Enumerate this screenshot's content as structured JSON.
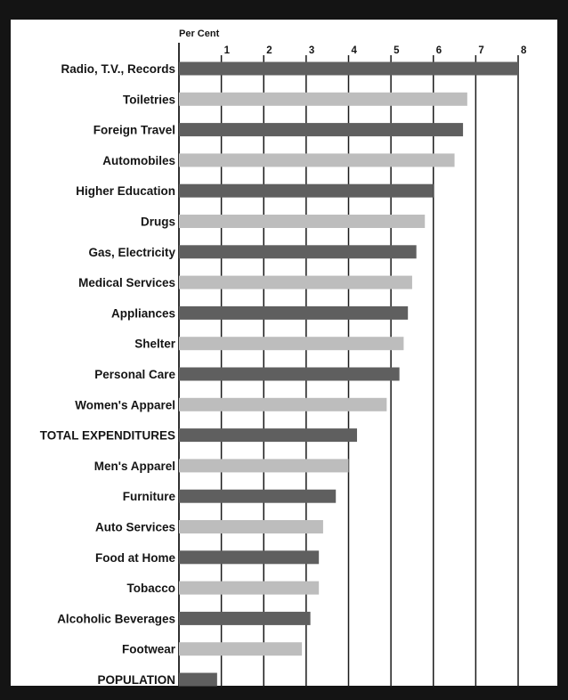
{
  "chart_data": {
    "type": "bar",
    "orientation": "horizontal",
    "unit_label": "Per Cent",
    "x_ticks": [
      1,
      2,
      3,
      4,
      5,
      6,
      7,
      8
    ],
    "xlim": [
      0,
      8
    ],
    "grid": true,
    "categories": [
      "Radio, T.V., Records",
      "Toiletries",
      "Foreign Travel",
      "Automobiles",
      "Higher Education",
      "Drugs",
      "Gas, Electricity",
      "Medical Services",
      "Appliances",
      "Shelter",
      "Personal Care",
      "Women's Apparel",
      "TOTAL EXPENDITURES",
      "Men's Apparel",
      "Furniture",
      "Auto Services",
      "Food at Home",
      "Tobacco",
      "Alcoholic Beverages",
      "Footwear",
      "POPULATION"
    ],
    "values": [
      8.0,
      6.8,
      6.7,
      6.5,
      6.0,
      5.8,
      5.6,
      5.5,
      5.4,
      5.3,
      5.2,
      4.9,
      4.2,
      4.0,
      3.7,
      3.4,
      3.3,
      3.3,
      3.1,
      2.9,
      0.9
    ],
    "bar_colors": [
      "#5f5f5f",
      "#bdbdbd"
    ]
  }
}
